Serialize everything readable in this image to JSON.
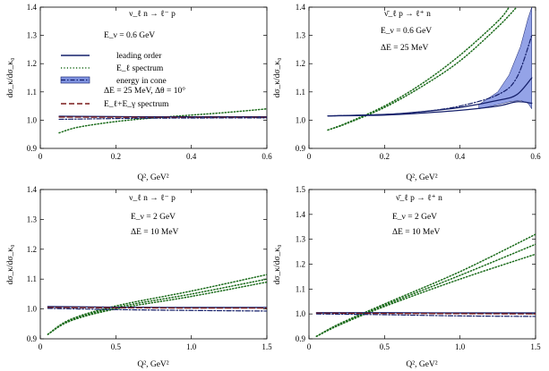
{
  "chart_data": [
    {
      "type": "line",
      "xlim": [
        0,
        0.6
      ],
      "ylim": [
        0.9,
        1.4
      ],
      "xticks": [
        "0",
        "0.2",
        "0.4",
        "0.6"
      ],
      "yticks": [
        "0.9",
        "1.0",
        "1.1",
        "1.2",
        "1.3",
        "1.4"
      ],
      "process": "ν_ℓ n → ℓ⁻ p",
      "annotations": [
        "E_ν = 0.6 GeV"
      ],
      "xlabel": "Q², GeV²",
      "ylabel": "dσ_κ/dσ_κ₀",
      "legend": [
        {
          "label": "leading order",
          "style": "solid"
        },
        {
          "label": "E_ℓ spectrum",
          "style": "dotted"
        },
        {
          "label": "energy in cone",
          "style": "band"
        },
        {
          "label": "ΔE = 25 MeV, Δθ = 10°",
          "style": "none"
        },
        {
          "label": "E_ℓ+E_γ spectrum",
          "style": "dashed"
        }
      ],
      "series": [
        {
          "style": "dotted",
          "x": [
            0.05,
            0.1,
            0.2,
            0.3,
            0.4,
            0.5,
            0.6
          ],
          "y": [
            0.955,
            0.975,
            0.995,
            1.008,
            1.018,
            1.028,
            1.04
          ]
        },
        {
          "style": "solid",
          "x": [
            0.05,
            0.3,
            0.6
          ],
          "y": [
            1.014,
            1.012,
            1.012
          ]
        },
        {
          "style": "dashed",
          "x": [
            0.05,
            0.3,
            0.6
          ],
          "y": [
            1.011,
            1.01,
            1.01
          ]
        },
        {
          "style": "dashdot",
          "x": [
            0.05,
            0.3,
            0.6
          ],
          "y": [
            1.003,
            1.007,
            1.008
          ]
        }
      ]
    },
    {
      "type": "line",
      "xlim": [
        0,
        0.6
      ],
      "ylim": [
        0.9,
        1.4
      ],
      "xticks": [
        "0",
        "0.2",
        "0.4",
        "0.6"
      ],
      "yticks": [
        "0.9",
        "1.0",
        "1.1",
        "1.2",
        "1.3",
        "1.4"
      ],
      "process": "ν̄_ℓ p → ℓ⁺ n",
      "annotations": [
        "E_ν = 0.6 GeV",
        "ΔE = 25 MeV"
      ],
      "xlabel": "Q², GeV²",
      "ylabel": "dσ_κ/dσ_κ₀",
      "band": {
        "x": [
          0.45,
          0.5,
          0.53,
          0.56,
          0.58,
          0.59
        ],
        "upper": [
          1.055,
          1.1,
          1.16,
          1.26,
          1.36,
          1.4
        ],
        "lower": [
          1.04,
          1.055,
          1.065,
          1.07,
          1.06,
          1.04
        ]
      },
      "series": [
        {
          "style": "dotted",
          "x": [
            0.05,
            0.1,
            0.2,
            0.3,
            0.4,
            0.5,
            0.53
          ],
          "y": [
            0.965,
            0.99,
            1.05,
            1.13,
            1.23,
            1.35,
            1.4
          ]
        },
        {
          "style": "dotted",
          "x": [
            0.05,
            0.1,
            0.2,
            0.3,
            0.4,
            0.5,
            0.55
          ],
          "y": [
            0.965,
            0.988,
            1.045,
            1.12,
            1.21,
            1.33,
            1.4
          ]
        },
        {
          "style": "solid",
          "x": [
            0.05,
            0.2,
            0.3,
            0.4,
            0.5,
            0.55,
            0.59
          ],
          "y": [
            1.015,
            1.02,
            1.03,
            1.045,
            1.07,
            1.09,
            1.15
          ]
        },
        {
          "style": "solid",
          "x": [
            0.05,
            0.2,
            0.3,
            0.4,
            0.5,
            0.55,
            0.59
          ],
          "y": [
            1.015,
            1.018,
            1.025,
            1.035,
            1.05,
            1.065,
            1.06
          ]
        },
        {
          "style": "dashdot",
          "x": [
            0.05,
            0.2,
            0.3,
            0.4,
            0.5,
            0.55,
            0.59
          ],
          "y": [
            1.015,
            1.02,
            1.03,
            1.05,
            1.09,
            1.15,
            1.3
          ]
        }
      ]
    },
    {
      "type": "line",
      "xlim": [
        0,
        1.5
      ],
      "ylim": [
        0.9,
        1.4
      ],
      "xticks": [
        "0",
        "0.5",
        "1.0",
        "1.5"
      ],
      "yticks": [
        "0.9",
        "1.0",
        "1.1",
        "1.2",
        "1.3",
        "1.4"
      ],
      "process": "ν_ℓ n → ℓ⁻ p",
      "annotations": [
        "E_ν = 2 GeV",
        "ΔE = 10 MeV"
      ],
      "xlabel": "Q², GeV²",
      "ylabel": "dσ_κ/dσ_κ₀",
      "series": [
        {
          "style": "dotted",
          "x": [
            0.05,
            0.2,
            0.5,
            1.0,
            1.5
          ],
          "y": [
            0.915,
            0.965,
            1.01,
            1.06,
            1.115
          ]
        },
        {
          "style": "dotted",
          "x": [
            0.05,
            0.2,
            0.5,
            1.0,
            1.5
          ],
          "y": [
            0.915,
            0.962,
            1.005,
            1.05,
            1.1
          ]
        },
        {
          "style": "dotted",
          "x": [
            0.05,
            0.2,
            0.5,
            1.0,
            1.5
          ],
          "y": [
            0.915,
            0.96,
            1.0,
            1.042,
            1.09
          ]
        },
        {
          "style": "solid",
          "x": [
            0.05,
            0.5,
            1.0,
            1.5
          ],
          "y": [
            1.008,
            1.006,
            1.005,
            1.005
          ]
        },
        {
          "style": "dashed",
          "x": [
            0.05,
            0.5,
            1.0,
            1.5
          ],
          "y": [
            1.005,
            1.004,
            1.003,
            1.003
          ]
        },
        {
          "style": "dashdot",
          "x": [
            0.05,
            0.5,
            1.0,
            1.5
          ],
          "y": [
            1.002,
            0.998,
            0.995,
            0.993
          ]
        }
      ]
    },
    {
      "type": "line",
      "xlim": [
        0,
        1.5
      ],
      "ylim": [
        0.9,
        1.5
      ],
      "xticks": [
        "0",
        "0.5",
        "1.0",
        "1.5"
      ],
      "yticks": [
        "0.9",
        "1.0",
        "1.1",
        "1.2",
        "1.3",
        "1.4",
        "1.5"
      ],
      "process": "ν̄_ℓ p → ℓ⁺ n",
      "annotations": [
        "E_ν = 2 GeV",
        "ΔE = 10 MeV"
      ],
      "xlabel": "Q², GeV²",
      "ylabel": "dσ_κ/dσ_κ₀",
      "series": [
        {
          "style": "dotted",
          "x": [
            0.05,
            0.2,
            0.5,
            1.0,
            1.5
          ],
          "y": [
            0.91,
            0.96,
            1.04,
            1.17,
            1.32
          ]
        },
        {
          "style": "dotted",
          "x": [
            0.05,
            0.2,
            0.5,
            1.0,
            1.5
          ],
          "y": [
            0.91,
            0.958,
            1.035,
            1.155,
            1.28
          ]
        },
        {
          "style": "dotted",
          "x": [
            0.05,
            0.2,
            0.5,
            1.0,
            1.5
          ],
          "y": [
            0.91,
            0.955,
            1.03,
            1.14,
            1.24
          ]
        },
        {
          "style": "solid",
          "x": [
            0.05,
            0.5,
            1.0,
            1.5
          ],
          "y": [
            1.005,
            1.005,
            1.004,
            1.004
          ]
        },
        {
          "style": "dashed",
          "x": [
            0.05,
            0.5,
            1.0,
            1.5
          ],
          "y": [
            1.003,
            1.002,
            1.001,
            1.0
          ]
        },
        {
          "style": "dashdot",
          "x": [
            0.05,
            0.5,
            1.0,
            1.5
          ],
          "y": [
            1.0,
            0.997,
            0.992,
            0.99
          ]
        }
      ]
    }
  ]
}
